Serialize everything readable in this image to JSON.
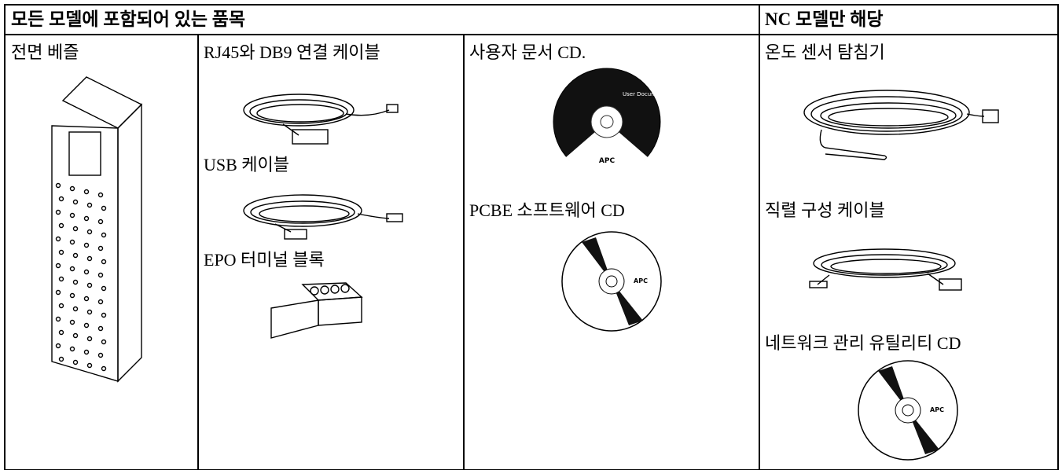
{
  "header": {
    "included_all_models": "모든 모델에 포함되어 있는 품목",
    "nc_models_only": "NC 모델만 해당"
  },
  "columns": [
    {
      "items": [
        {
          "label": "전면 베즐"
        }
      ]
    },
    {
      "items": [
        {
          "label": "RJ45와 DB9 연결 케이블"
        },
        {
          "label": "USB 케이블"
        },
        {
          "label": "EPO 터미널 블록"
        }
      ]
    },
    {
      "items": [
        {
          "label": "사용자 문서 CD.",
          "disc_text": "User Documentation",
          "logo": "APC"
        },
        {
          "label": "PCBE 소프트웨어 CD",
          "logo": "APC"
        }
      ]
    },
    {
      "items": [
        {
          "label": "온도 센서 탐침기"
        },
        {
          "label": "직렬 구성 케이블"
        },
        {
          "label": "네트워크 관리 유틸리티 CD",
          "logo": "APC"
        }
      ]
    }
  ]
}
